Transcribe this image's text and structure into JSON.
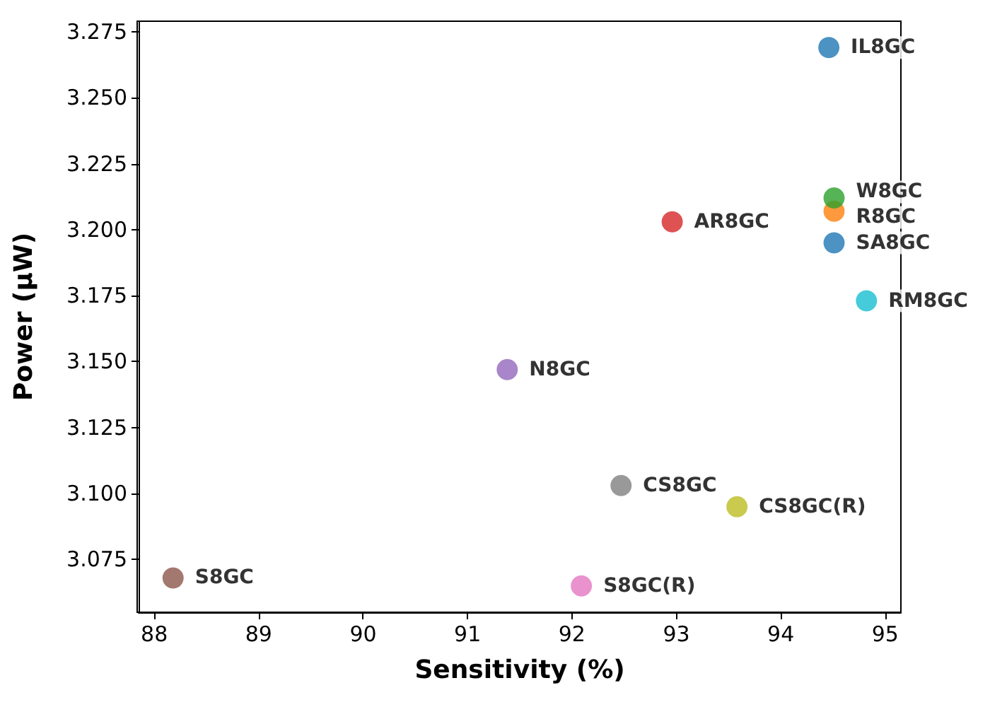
{
  "chart_data": {
    "type": "scatter",
    "xlabel": "Sensitivity (%)",
    "ylabel": "Power (μW)",
    "xlim": [
      87.85,
      95.15
    ],
    "xticks": [
      88,
      89,
      90,
      91,
      92,
      93,
      94,
      95
    ],
    "ylim": [
      3.055,
      3.279
    ],
    "yticks": [
      {
        "value": 3.075,
        "label": "3.075"
      },
      {
        "value": 3.1,
        "label": "3.100"
      },
      {
        "value": 3.125,
        "label": "3.125"
      },
      {
        "value": 3.15,
        "label": "3.150"
      },
      {
        "value": 3.175,
        "label": "3.175"
      },
      {
        "value": 3.2,
        "label": "3.200"
      },
      {
        "value": 3.225,
        "label": "3.225"
      },
      {
        "value": 3.25,
        "label": "3.250"
      },
      {
        "value": 3.275,
        "label": "3.275"
      }
    ],
    "grid": false,
    "legend": false,
    "marker": "circle",
    "series": [
      {
        "name": "IL8GC",
        "color": "#1f77b4",
        "x": [
          94.46
        ],
        "values": [
          3.269
        ]
      },
      {
        "name": "R8GC",
        "color": "#ff7f0e",
        "x": [
          94.51
        ],
        "values": [
          3.207
        ]
      },
      {
        "name": "W8GC",
        "color": "#2ca02c",
        "x": [
          94.51
        ],
        "values": [
          3.212
        ]
      },
      {
        "name": "AR8GC",
        "color": "#d62728",
        "x": [
          92.96
        ],
        "values": [
          3.203
        ]
      },
      {
        "name": "N8GC",
        "color": "#9467bd",
        "x": [
          91.38
        ],
        "values": [
          3.147
        ]
      },
      {
        "name": "S8GC",
        "color": "#8c564b",
        "x": [
          88.18
        ],
        "values": [
          3.068
        ]
      },
      {
        "name": "S8GC(R)",
        "color": "#e377c2",
        "x": [
          92.09
        ],
        "values": [
          3.065
        ]
      },
      {
        "name": "CS8GC",
        "color": "#7f7f7f",
        "x": [
          92.47
        ],
        "values": [
          3.103
        ]
      },
      {
        "name": "CS8GC(R)",
        "color": "#bcbd22",
        "x": [
          93.58
        ],
        "values": [
          3.095
        ]
      },
      {
        "name": "RM8GC",
        "color": "#17becf",
        "x": [
          94.82
        ],
        "values": [
          3.173
        ]
      },
      {
        "name": "SA8GC",
        "color": "#1f77b4",
        "x": [
          94.51
        ],
        "values": [
          3.195
        ]
      }
    ]
  }
}
